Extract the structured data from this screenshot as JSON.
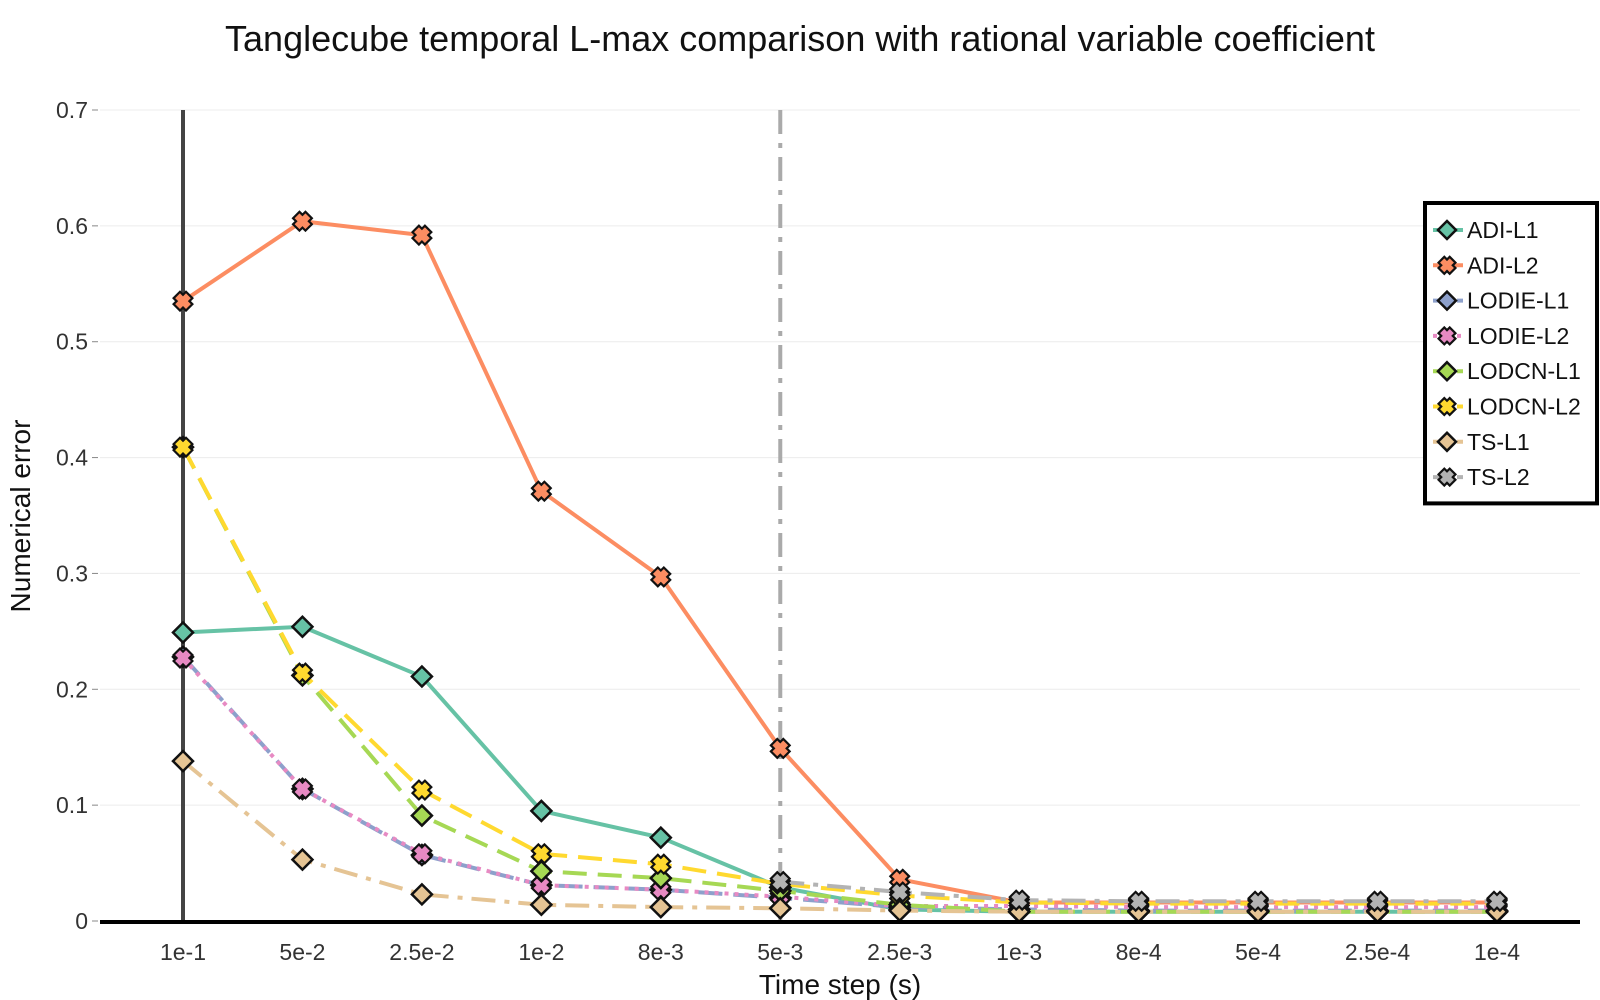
{
  "chart_data": {
    "type": "line",
    "title": "Tanglecube temporal L-max comparison with rational variable coefficient",
    "xlabel": "Time step (s)",
    "ylabel": "Numerical error",
    "categories": [
      "1e-1",
      "5e-2",
      "2.5e-2",
      "1e-2",
      "8e-3",
      "5e-3",
      "2.5e-3",
      "1e-3",
      "8e-4",
      "5e-4",
      "2.5e-4",
      "1e-4"
    ],
    "ylim": [
      0,
      0.7
    ],
    "yticks": [
      0,
      0.1,
      0.2,
      0.3,
      0.4,
      0.5,
      0.6,
      0.7
    ],
    "ytick_labels": [
      "0",
      "0.1",
      "0.2",
      "0.3",
      "0.4",
      "0.5",
      "0.6",
      "0.7"
    ],
    "grid": true,
    "legend_position": "top-right",
    "vertical_lines": [
      {
        "category": "1e-1",
        "style": "solid",
        "color": "#444444"
      },
      {
        "category": "5e-3",
        "style": "dashdot",
        "color": "#aaaaaa"
      }
    ],
    "series": [
      {
        "name": "ADI-L1",
        "color": "#66c2a5",
        "dash": "solid",
        "marker": "diamond",
        "values": [
          0.249,
          0.254,
          0.211,
          0.095,
          0.072,
          0.029,
          0.01,
          0.008,
          0.008,
          0.008,
          0.008,
          0.008
        ]
      },
      {
        "name": "ADI-L2",
        "color": "#fc8d62",
        "dash": "solid",
        "marker": "x",
        "values": [
          0.535,
          0.604,
          0.592,
          0.371,
          0.297,
          0.149,
          0.036,
          0.016,
          0.016,
          0.016,
          0.016,
          0.016
        ]
      },
      {
        "name": "LODIE-L1",
        "color": "#8da0cb",
        "dash": "dash",
        "marker": "diamond",
        "values": [
          0.228,
          0.114,
          0.057,
          0.031,
          0.027,
          0.02,
          0.012,
          0.01,
          0.009,
          0.009,
          0.009,
          0.009
        ]
      },
      {
        "name": "LODIE-L2",
        "color": "#e78ac3",
        "dash": "dot",
        "marker": "x",
        "values": [
          0.227,
          0.114,
          0.058,
          0.031,
          0.027,
          0.021,
          0.013,
          0.013,
          0.012,
          0.012,
          0.012,
          0.012
        ]
      },
      {
        "name": "LODCN-L1",
        "color": "#a6d854",
        "dash": "dash",
        "marker": "diamond",
        "values": [
          0.409,
          0.212,
          0.091,
          0.043,
          0.037,
          0.026,
          0.014,
          0.008,
          0.008,
          0.008,
          0.008,
          0.008
        ]
      },
      {
        "name": "LODCN-L2",
        "color": "#ffd92f",
        "dash": "dash",
        "marker": "x",
        "values": [
          0.409,
          0.214,
          0.113,
          0.058,
          0.049,
          0.032,
          0.022,
          0.016,
          0.015,
          0.015,
          0.015,
          0.015
        ]
      },
      {
        "name": "TS-L1",
        "color": "#e5c494",
        "dash": "dashdot",
        "marker": "diamond",
        "values": [
          0.138,
          0.053,
          0.023,
          0.014,
          0.012,
          0.011,
          0.009,
          0.008,
          0.008,
          0.008,
          0.008,
          0.008
        ]
      },
      {
        "name": "TS-L2",
        "color": "#b3b3b3",
        "dash": "dashdot",
        "marker": "x",
        "values": [
          null,
          null,
          null,
          null,
          null,
          0.034,
          0.025,
          0.018,
          0.017,
          0.017,
          0.017,
          0.017
        ]
      }
    ]
  }
}
